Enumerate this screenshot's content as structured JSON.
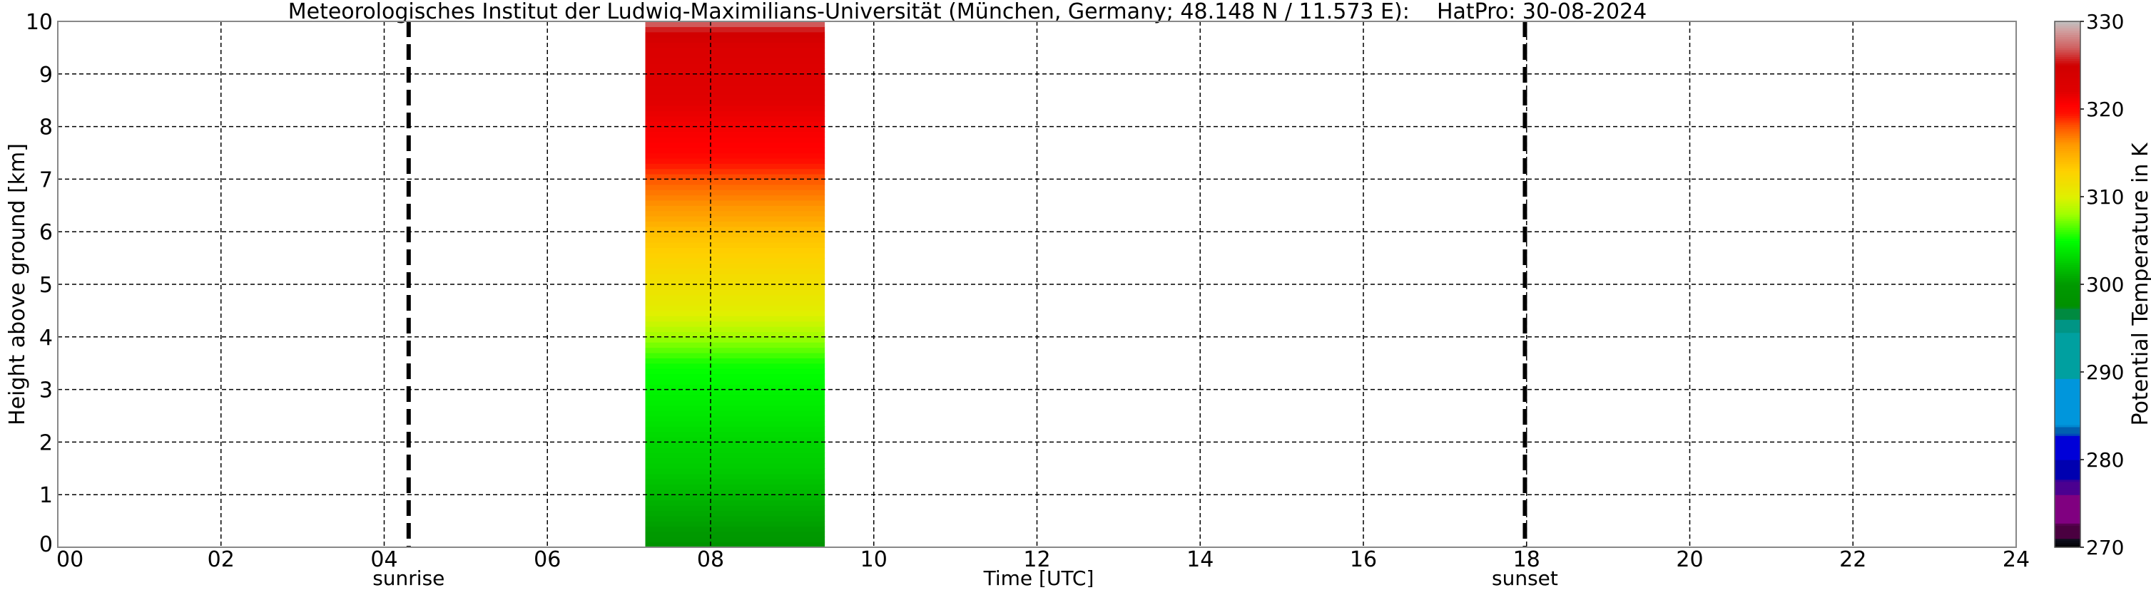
{
  "chart_data": {
    "type": "heatmap",
    "title": "Meteorologisches Institut der Ludwig-Maximilians-Universität (München, Germany; 48.148 N / 11.573 E):    HatPro: 30-08-2024",
    "xlabel": "Time [UTC]",
    "ylabel": "Height above ground [km]",
    "xlim": [
      0,
      24
    ],
    "ylim": [
      0,
      10
    ],
    "xticks": [
      "00",
      "02",
      "04",
      "06",
      "08",
      "10",
      "12",
      "14",
      "16",
      "18",
      "20",
      "22",
      "24"
    ],
    "yticks": [
      "0",
      "1",
      "2",
      "3",
      "4",
      "5",
      "6",
      "7",
      "8",
      "9",
      "10"
    ],
    "grid": true,
    "data_time_range_utc": [
      7.2,
      9.4
    ],
    "profile": {
      "height_km": [
        0,
        0.1,
        0.5,
        1,
        1.5,
        2,
        2.5,
        3,
        3.5,
        3.7,
        4,
        4.3,
        4.6,
        5,
        5.3,
        5.6,
        6,
        6.3,
        6.6,
        6.9,
        7.2,
        7.5,
        8,
        8.5,
        9,
        9.5,
        9.8,
        10
      ],
      "theta_K": [
        297,
        299.5,
        300.5,
        301.5,
        302.5,
        303,
        303.8,
        304.5,
        305.3,
        306.5,
        308,
        309.5,
        310.5,
        311.5,
        312.3,
        313,
        314,
        315.5,
        316.5,
        317.5,
        319,
        320.3,
        321,
        322,
        322.5,
        323,
        325,
        327.5
      ]
    },
    "annotations": [
      {
        "label": "sunrise",
        "time_utc": 4.3
      },
      {
        "label": "sunset",
        "time_utc": 17.98
      }
    ],
    "colorbar": {
      "label": "Potential Temperature in K",
      "range": [
        270,
        330
      ],
      "ticks": [
        "270",
        "280",
        "290",
        "300",
        "310",
        "320",
        "330"
      ],
      "stops": [
        [
          270,
          "#000000"
        ],
        [
          271,
          "#101020"
        ],
        [
          271.1,
          "#4a0040"
        ],
        [
          272.6,
          "#4a0040"
        ],
        [
          272.7,
          "#800080"
        ],
        [
          276,
          "#800080"
        ],
        [
          276.1,
          "#4b0090"
        ],
        [
          277.6,
          "#4b0090"
        ],
        [
          277.7,
          "#0000b0"
        ],
        [
          280,
          "#0000b0"
        ],
        [
          280.1,
          "#0000d8"
        ],
        [
          282.8,
          "#0000d8"
        ],
        [
          282.9,
          "#0060b0"
        ],
        [
          283.8,
          "#0060b0"
        ],
        [
          283.9,
          "#0096dc"
        ],
        [
          289.2,
          "#0096dc"
        ],
        [
          289.3,
          "#00a0a0"
        ],
        [
          294.5,
          "#00a0a0"
        ],
        [
          294.6,
          "#009585"
        ],
        [
          296,
          "#009585"
        ],
        [
          296.1,
          "#008a40"
        ],
        [
          297.3,
          "#008a40"
        ],
        [
          297.4,
          "#009000"
        ],
        [
          300,
          "#009900"
        ],
        [
          305,
          "#00ff00"
        ],
        [
          308,
          "#a0ff00"
        ],
        [
          310,
          "#e0f000"
        ],
        [
          313,
          "#ffd000"
        ],
        [
          316,
          "#ff9900"
        ],
        [
          318,
          "#ff5500"
        ],
        [
          319.5,
          "#ff1000"
        ],
        [
          320.5,
          "#ff0000"
        ],
        [
          322,
          "#e00000"
        ],
        [
          325,
          "#d00000"
        ],
        [
          327,
          "#d06060"
        ],
        [
          329,
          "#d0a0a0"
        ],
        [
          330,
          "#c0c0c0"
        ]
      ]
    }
  }
}
